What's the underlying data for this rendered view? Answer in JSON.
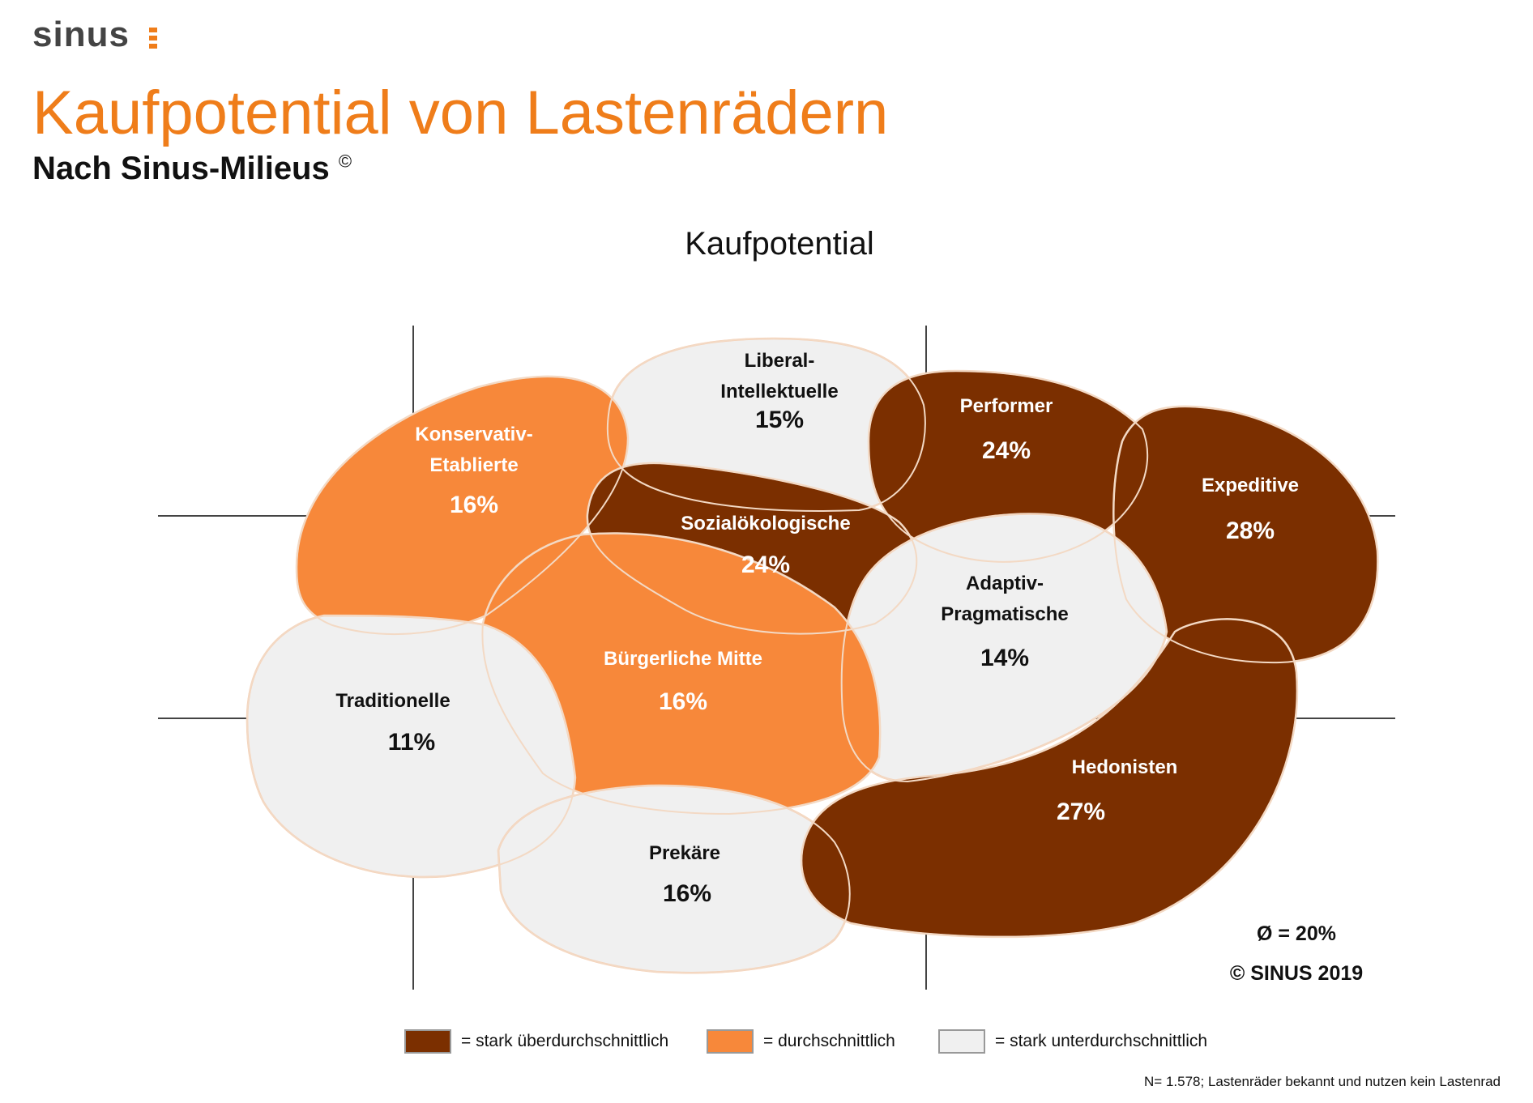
{
  "logo": {
    "text": "sinus"
  },
  "header": {
    "title": "Kaufpotential von Lastenrädern",
    "subtitle": "Nach Sinus-Milieus",
    "subtitle_mark": "©"
  },
  "chart_data": {
    "type": "bubble-map",
    "title": "Kaufpotential",
    "average_label": "Ø = 20%",
    "copyright": "© SINUS 2019",
    "categories": {
      "high": {
        "label": "= stark überdurchschnittlich",
        "color": "#7b2f00"
      },
      "average": {
        "label": "= durchschnittlich",
        "color": "#f7883a"
      },
      "low": {
        "label": "= stark unterdurchschnittlich",
        "color": "#f0f0f0"
      }
    },
    "milieus": [
      {
        "id": "liberal-intellektuelle",
        "name": [
          "Liberal-",
          "Intellektuelle"
        ],
        "value_label": "15%",
        "value": 15,
        "category": "low"
      },
      {
        "id": "konservativ-etablierte",
        "name": [
          "Konservativ-",
          "Etablierte"
        ],
        "value_label": "16%",
        "value": 16,
        "category": "average"
      },
      {
        "id": "performer",
        "name": [
          "Performer"
        ],
        "value_label": "24%",
        "value": 24,
        "category": "high"
      },
      {
        "id": "expeditive",
        "name": [
          "Expeditive"
        ],
        "value_label": "28%",
        "value": 28,
        "category": "high"
      },
      {
        "id": "sozialoekologische",
        "name": [
          "Sozialökologische"
        ],
        "value_label": "24%",
        "value": 24,
        "category": "high"
      },
      {
        "id": "adaptiv-pragmatische",
        "name": [
          "Adaptiv-",
          "Pragmatische"
        ],
        "value_label": "14%",
        "value": 14,
        "category": "low"
      },
      {
        "id": "buergerliche-mitte",
        "name": [
          "Bürgerliche Mitte"
        ],
        "value_label": "16%",
        "value": 16,
        "category": "average"
      },
      {
        "id": "traditionelle",
        "name": [
          "Traditionelle"
        ],
        "value_label": "11%",
        "value": 11,
        "category": "low"
      },
      {
        "id": "prekaere",
        "name": [
          "Prekäre"
        ],
        "value_label": "16%",
        "value": 16,
        "category": "low"
      },
      {
        "id": "hedonisten",
        "name": [
          "Hedonisten"
        ],
        "value_label": "27%",
        "value": 27,
        "category": "high"
      }
    ]
  },
  "legend": {
    "items": [
      {
        "label": "= stark überdurchschnittlich",
        "color": "#7b2f00"
      },
      {
        "label": "= durchschnittlich",
        "color": "#f7883a"
      },
      {
        "label": "= stark unterdurchschnittlich",
        "color": "#f0f0f0"
      }
    ]
  },
  "footnote": "N= 1.578; Lastenräder bekannt und nutzen kein Lastenrad"
}
